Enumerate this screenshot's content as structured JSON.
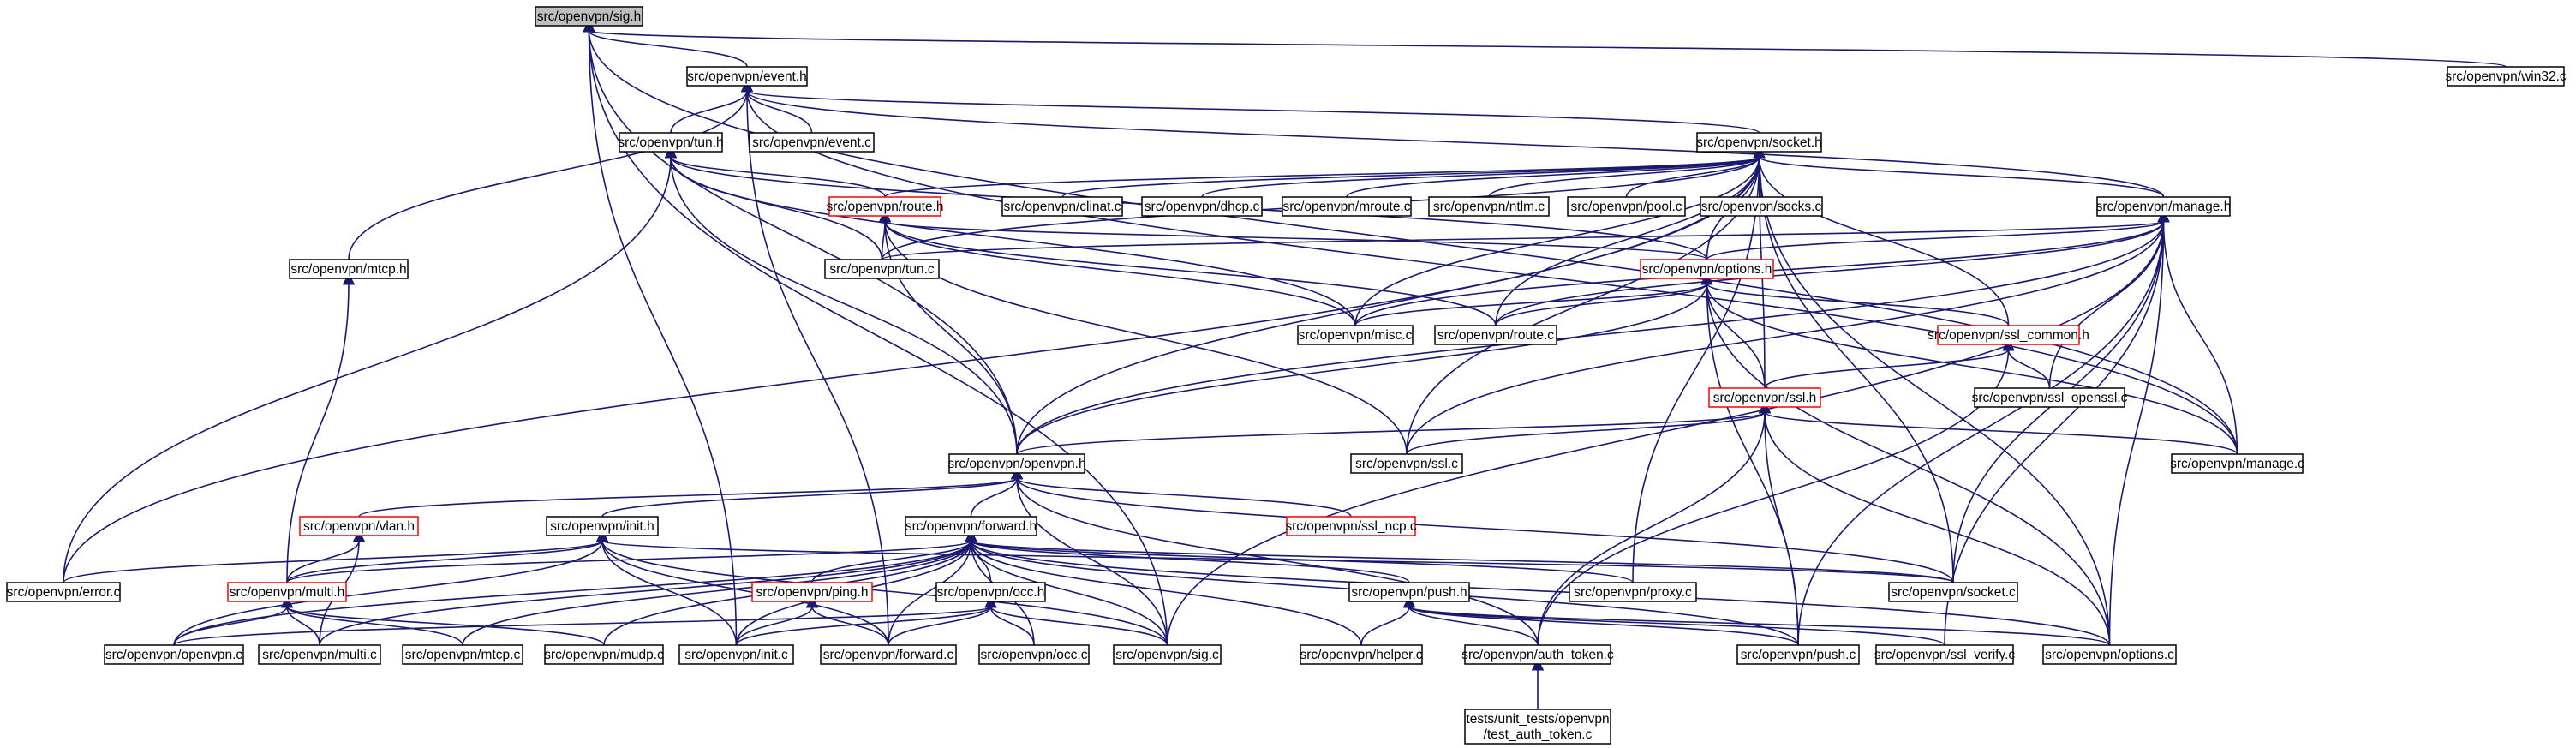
{
  "nodes": {
    "sig_h": {
      "label": [
        "src/openvpn/sig.h"
      ],
      "style": "root"
    },
    "win32_c": {
      "label": [
        "src/openvpn/win32.c"
      ],
      "style": "black"
    },
    "event_h": {
      "label": [
        "src/openvpn/event.h"
      ],
      "style": "black"
    },
    "tun_h": {
      "label": [
        "src/openvpn/tun.h"
      ],
      "style": "black"
    },
    "event_c": {
      "label": [
        "src/openvpn/event.c"
      ],
      "style": "black"
    },
    "socket_h": {
      "label": [
        "src/openvpn/socket.h"
      ],
      "style": "black"
    },
    "route_h": {
      "label": [
        "src/openvpn/route.h"
      ],
      "style": "red"
    },
    "clinat_c": {
      "label": [
        "src/openvpn/clinat.c"
      ],
      "style": "black"
    },
    "dhcp_c": {
      "label": [
        "src/openvpn/dhcp.c"
      ],
      "style": "black"
    },
    "mroute_c": {
      "label": [
        "src/openvpn/mroute.c"
      ],
      "style": "black"
    },
    "ntlm_c": {
      "label": [
        "src/openvpn/ntlm.c"
      ],
      "style": "black"
    },
    "pool_c": {
      "label": [
        "src/openvpn/pool.c"
      ],
      "style": "black"
    },
    "socks_c": {
      "label": [
        "src/openvpn/socks.c"
      ],
      "style": "black"
    },
    "manage_h": {
      "label": [
        "src/openvpn/manage.h"
      ],
      "style": "black"
    },
    "mtcp_h": {
      "label": [
        "src/openvpn/mtcp.h"
      ],
      "style": "black"
    },
    "tun_c": {
      "label": [
        "src/openvpn/tun.c"
      ],
      "style": "black"
    },
    "options_h": {
      "label": [
        "src/openvpn/options.h"
      ],
      "style": "red"
    },
    "misc_c": {
      "label": [
        "src/openvpn/misc.c"
      ],
      "style": "black"
    },
    "route_c": {
      "label": [
        "src/openvpn/route.c"
      ],
      "style": "black"
    },
    "ssl_common_h": {
      "label": [
        "src/openvpn/ssl_common.h"
      ],
      "style": "red"
    },
    "ssl_openssl_c": {
      "label": [
        "src/openvpn/ssl_openssl.c"
      ],
      "style": "black"
    },
    "ssl_h": {
      "label": [
        "src/openvpn/ssl.h"
      ],
      "style": "red"
    },
    "openvpn_h": {
      "label": [
        "src/openvpn/openvpn.h"
      ],
      "style": "black"
    },
    "ssl_c": {
      "label": [
        "src/openvpn/ssl.c"
      ],
      "style": "black"
    },
    "manage_c": {
      "label": [
        "src/openvpn/manage.c"
      ],
      "style": "black"
    },
    "vlan_h": {
      "label": [
        "src/openvpn/vlan.h"
      ],
      "style": "red"
    },
    "init_h": {
      "label": [
        "src/openvpn/init.h"
      ],
      "style": "black"
    },
    "forward_h": {
      "label": [
        "src/openvpn/forward.h"
      ],
      "style": "black"
    },
    "ssl_ncp_c": {
      "label": [
        "src/openvpn/ssl_ncp.c"
      ],
      "style": "red"
    },
    "error_c": {
      "label": [
        "src/openvpn/error.c"
      ],
      "style": "black"
    },
    "multi_h": {
      "label": [
        "src/openvpn/multi.h"
      ],
      "style": "red"
    },
    "ping_h": {
      "label": [
        "src/openvpn/ping.h"
      ],
      "style": "red"
    },
    "occ_h": {
      "label": [
        "src/openvpn/occ.h"
      ],
      "style": "black"
    },
    "proxy_c": {
      "label": [
        "src/openvpn/proxy.c"
      ],
      "style": "black"
    },
    "socket_c": {
      "label": [
        "src/openvpn/socket.c"
      ],
      "style": "black"
    },
    "push_h": {
      "label": [
        "src/openvpn/push.h"
      ],
      "style": "black"
    },
    "openvpn_c": {
      "label": [
        "src/openvpn/openvpn.c"
      ],
      "style": "black"
    },
    "multi_c": {
      "label": [
        "src/openvpn/multi.c"
      ],
      "style": "black"
    },
    "mtcp_c": {
      "label": [
        "src/openvpn/mtcp.c"
      ],
      "style": "black"
    },
    "mudp_c": {
      "label": [
        "src/openvpn/mudp.c"
      ],
      "style": "black"
    },
    "init_c": {
      "label": [
        "src/openvpn/init.c"
      ],
      "style": "black"
    },
    "forward_c": {
      "label": [
        "src/openvpn/forward.c"
      ],
      "style": "black"
    },
    "occ_c": {
      "label": [
        "src/openvpn/occ.c"
      ],
      "style": "black"
    },
    "sig_c": {
      "label": [
        "src/openvpn/sig.c"
      ],
      "style": "black"
    },
    "helper_c": {
      "label": [
        "src/openvpn/helper.c"
      ],
      "style": "black"
    },
    "auth_token_c": {
      "label": [
        "src/openvpn/auth_token.c"
      ],
      "style": "black"
    },
    "push_c": {
      "label": [
        "src/openvpn/push.c"
      ],
      "style": "black"
    },
    "ssl_verify_c": {
      "label": [
        "src/openvpn/ssl_verify.c"
      ],
      "style": "black"
    },
    "options_c": {
      "label": [
        "src/openvpn/options.c"
      ],
      "style": "black"
    },
    "test_auth_token_c": {
      "label": [
        "tests/unit_tests/openvpn",
        "/test_auth_token.c"
      ],
      "style": "black"
    }
  },
  "edges": [
    [
      "sig_h",
      "event_h"
    ],
    [
      "sig_h",
      "win32_c"
    ],
    [
      "sig_h",
      "openvpn_h"
    ],
    [
      "sig_h",
      "init_c"
    ],
    [
      "sig_h",
      "sig_c"
    ],
    [
      "sig_h",
      "manage_c"
    ],
    [
      "event_h",
      "tun_h"
    ],
    [
      "event_h",
      "event_c"
    ],
    [
      "event_h",
      "socket_h"
    ],
    [
      "event_h",
      "manage_h"
    ],
    [
      "event_h",
      "mtcp_h"
    ],
    [
      "event_h",
      "forward_c"
    ],
    [
      "event_h",
      "manage_c"
    ],
    [
      "tun_h",
      "tun_c"
    ],
    [
      "tun_h",
      "route_h"
    ],
    [
      "tun_h",
      "openvpn_h"
    ],
    [
      "tun_h",
      "options_h"
    ],
    [
      "tun_h",
      "misc_c"
    ],
    [
      "tun_h",
      "error_c"
    ],
    [
      "socket_h",
      "clinat_c"
    ],
    [
      "socket_h",
      "dhcp_c"
    ],
    [
      "socket_h",
      "mroute_c"
    ],
    [
      "socket_h",
      "ntlm_c"
    ],
    [
      "socket_h",
      "pool_c"
    ],
    [
      "socket_h",
      "socks_c"
    ],
    [
      "socket_h",
      "manage_h"
    ],
    [
      "socket_h",
      "route_h"
    ],
    [
      "socket_h",
      "tun_c"
    ],
    [
      "socket_h",
      "options_h"
    ],
    [
      "socket_h",
      "misc_c"
    ],
    [
      "socket_h",
      "route_c"
    ],
    [
      "socket_h",
      "ssl_common_h"
    ],
    [
      "socket_h",
      "ssl_h"
    ],
    [
      "socket_h",
      "openvpn_h"
    ],
    [
      "socket_h",
      "ssl_c"
    ],
    [
      "socket_h",
      "error_c"
    ],
    [
      "socket_h",
      "proxy_c"
    ],
    [
      "socket_h",
      "socket_c"
    ],
    [
      "socket_h",
      "options_c"
    ],
    [
      "route_h",
      "tun_c"
    ],
    [
      "route_h",
      "options_h"
    ],
    [
      "route_h",
      "openvpn_h"
    ],
    [
      "route_h",
      "route_c"
    ],
    [
      "route_h",
      "misc_c"
    ],
    [
      "route_h",
      "ssl_c"
    ],
    [
      "manage_h",
      "tun_c"
    ],
    [
      "manage_h",
      "options_h"
    ],
    [
      "manage_h",
      "misc_c"
    ],
    [
      "manage_h",
      "route_c"
    ],
    [
      "manage_h",
      "ssl_openssl_c"
    ],
    [
      "manage_h",
      "ssl_c"
    ],
    [
      "manage_h",
      "manage_c"
    ],
    [
      "manage_h",
      "openvpn_h"
    ],
    [
      "manage_h",
      "socket_c"
    ],
    [
      "manage_h",
      "sig_c"
    ],
    [
      "manage_h",
      "push_c"
    ],
    [
      "manage_h",
      "ssl_verify_c"
    ],
    [
      "manage_h",
      "options_c"
    ],
    [
      "mtcp_h",
      "multi_h"
    ],
    [
      "options_h",
      "misc_c"
    ],
    [
      "options_h",
      "route_c"
    ],
    [
      "options_h",
      "ssl_common_h"
    ],
    [
      "options_h",
      "ssl_h"
    ],
    [
      "options_h",
      "openvpn_h"
    ],
    [
      "options_h",
      "manage_c"
    ],
    [
      "options_h",
      "push_c"
    ],
    [
      "options_h",
      "options_c"
    ],
    [
      "ssl_common_h",
      "ssl_openssl_c"
    ],
    [
      "ssl_common_h",
      "ssl_h"
    ],
    [
      "ssl_common_h",
      "auth_token_c"
    ],
    [
      "ssl_h",
      "openvpn_h"
    ],
    [
      "ssl_h",
      "ssl_c"
    ],
    [
      "ssl_h",
      "manage_c"
    ],
    [
      "ssl_h",
      "auth_token_c"
    ],
    [
      "ssl_h",
      "push_c"
    ],
    [
      "ssl_h",
      "options_c"
    ],
    [
      "openvpn_h",
      "vlan_h"
    ],
    [
      "openvpn_h",
      "init_h"
    ],
    [
      "openvpn_h",
      "forward_h"
    ],
    [
      "openvpn_h",
      "ssl_ncp_c"
    ],
    [
      "openvpn_h",
      "socket_c"
    ],
    [
      "openvpn_h",
      "sig_c"
    ],
    [
      "openvpn_h",
      "auth_token_c"
    ],
    [
      "vlan_h",
      "multi_h"
    ],
    [
      "vlan_h",
      "multi_c"
    ],
    [
      "init_h",
      "error_c"
    ],
    [
      "init_h",
      "multi_h"
    ],
    [
      "init_h",
      "openvpn_c"
    ],
    [
      "init_h",
      "init_c"
    ],
    [
      "init_h",
      "forward_c"
    ],
    [
      "init_h",
      "sig_c"
    ],
    [
      "init_h",
      "socket_c"
    ],
    [
      "forward_h",
      "multi_h"
    ],
    [
      "forward_h",
      "ping_h"
    ],
    [
      "forward_h",
      "occ_h"
    ],
    [
      "forward_h",
      "push_h"
    ],
    [
      "forward_h",
      "proxy_c"
    ],
    [
      "forward_h",
      "socket_c"
    ],
    [
      "forward_h",
      "openvpn_c"
    ],
    [
      "forward_h",
      "multi_c"
    ],
    [
      "forward_h",
      "mtcp_c"
    ],
    [
      "forward_h",
      "mudp_c"
    ],
    [
      "forward_h",
      "init_c"
    ],
    [
      "forward_h",
      "forward_c"
    ],
    [
      "forward_h",
      "occ_c"
    ],
    [
      "forward_h",
      "sig_c"
    ],
    [
      "forward_h",
      "helper_c"
    ],
    [
      "forward_h",
      "push_c"
    ],
    [
      "forward_h",
      "options_c"
    ],
    [
      "multi_h",
      "openvpn_c"
    ],
    [
      "multi_h",
      "multi_c"
    ],
    [
      "multi_h",
      "mtcp_c"
    ],
    [
      "multi_h",
      "mudp_c"
    ],
    [
      "ping_h",
      "init_c"
    ],
    [
      "ping_h",
      "forward_c"
    ],
    [
      "occ_h",
      "init_c"
    ],
    [
      "occ_h",
      "forward_c"
    ],
    [
      "occ_h",
      "occ_c"
    ],
    [
      "occ_h",
      "sig_c"
    ],
    [
      "occ_h",
      "openvpn_c"
    ],
    [
      "push_h",
      "helper_c"
    ],
    [
      "push_h",
      "auth_token_c"
    ],
    [
      "push_h",
      "push_c"
    ],
    [
      "push_h",
      "ssl_verify_c"
    ],
    [
      "push_h",
      "options_c"
    ],
    [
      "auth_token_c",
      "test_auth_token_c"
    ]
  ]
}
